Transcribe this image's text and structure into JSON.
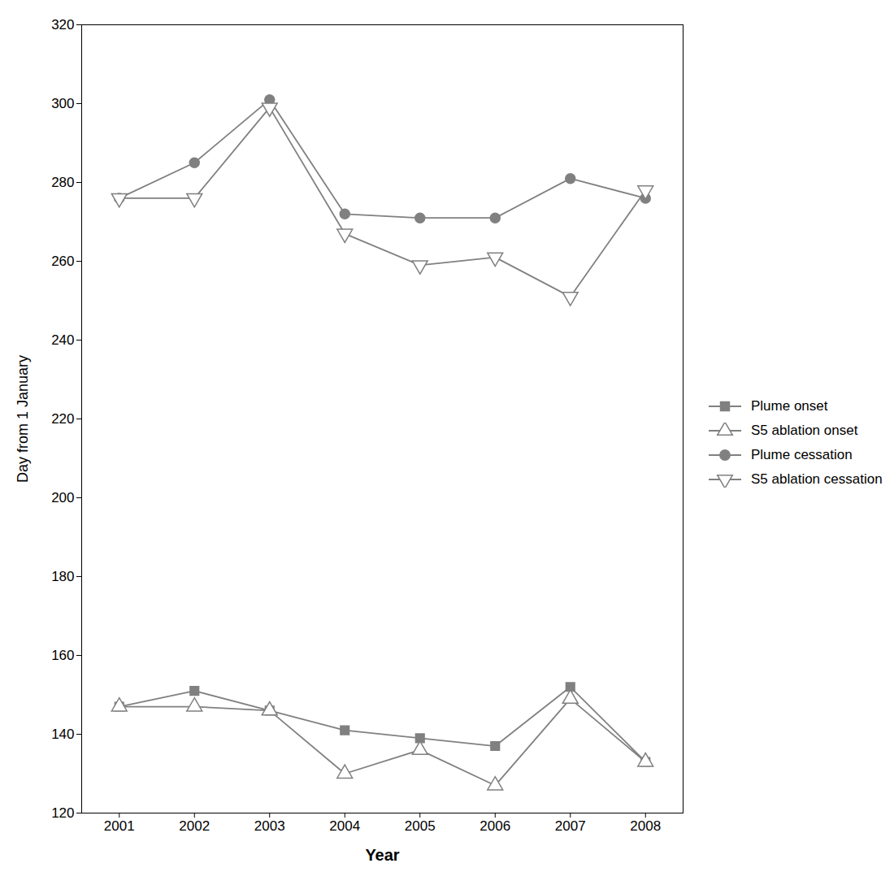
{
  "chart_data": {
    "type": "line",
    "x": [
      2001,
      2002,
      2003,
      2004,
      2005,
      2006,
      2007,
      2008
    ],
    "series": [
      {
        "name": "Plume onset",
        "color": "#808080",
        "marker": "filled-square",
        "values": [
          147,
          151,
          146,
          141,
          139,
          137,
          152,
          133
        ]
      },
      {
        "name": "S5 ablation onset",
        "color": "#808080",
        "marker": "open-triangle-up",
        "values": [
          147,
          147,
          146,
          130,
          136,
          127,
          149,
          133
        ]
      },
      {
        "name": "Plume cessation",
        "color": "#808080",
        "marker": "filled-circle",
        "values": [
          276,
          285,
          301,
          272,
          271,
          271,
          281,
          276
        ]
      },
      {
        "name": "S5 ablation cessation",
        "color": "#808080",
        "marker": "open-triangle-down",
        "values": [
          276,
          276,
          299,
          267,
          259,
          261,
          251,
          278
        ]
      }
    ],
    "xlabel": "Year",
    "ylabel": "Day from 1 January",
    "xlim": [
      2000.5,
      2008.5
    ],
    "xticks": [
      2001,
      2002,
      2003,
      2004,
      2005,
      2006,
      2007,
      2008
    ],
    "ylim": [
      120,
      320
    ],
    "yticks": [
      120,
      140,
      160,
      180,
      200,
      220,
      240,
      260,
      280,
      300,
      320
    ],
    "grid": false,
    "legend": "right"
  }
}
